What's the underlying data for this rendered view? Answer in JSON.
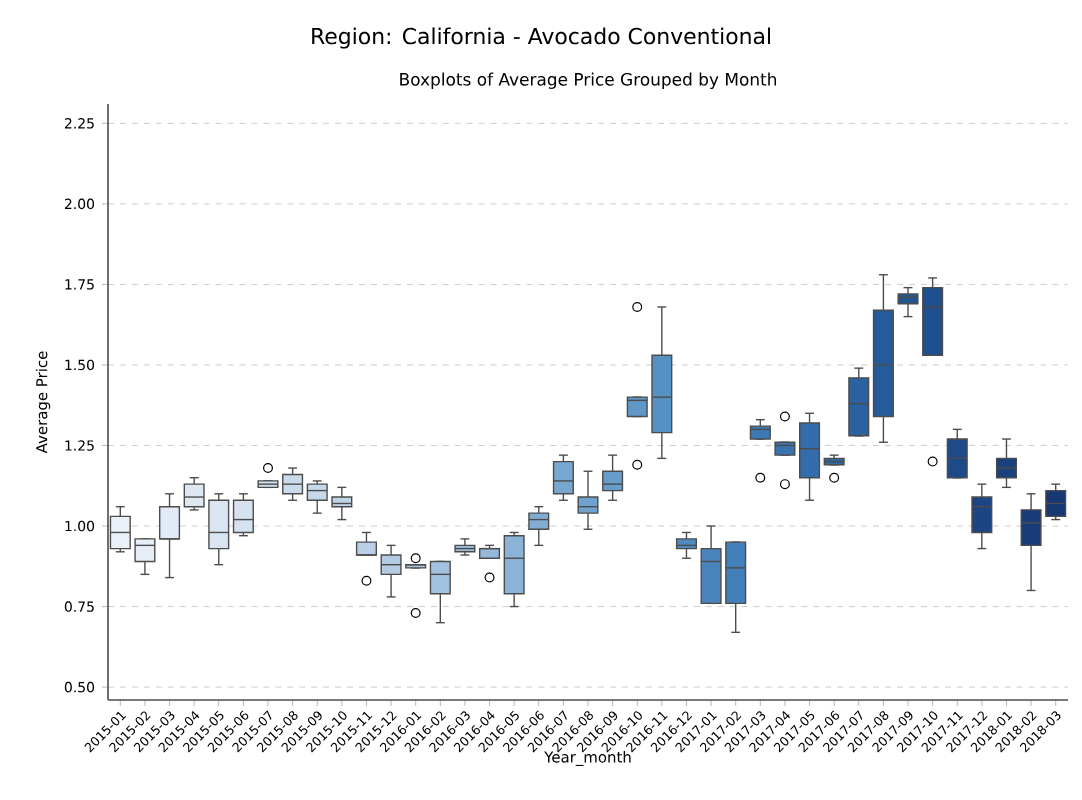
{
  "chart_data": {
    "type": "box",
    "title": "Region: California - Avocado Conventional",
    "subtitle": "Boxplots of Average Price Grouped by Month",
    "xlabel": "Year_month",
    "ylabel": "Average Price",
    "categories": [
      "2015-01",
      "2015-02",
      "2015-03",
      "2015-04",
      "2015-05",
      "2015-06",
      "2015-07",
      "2015-08",
      "2015-09",
      "2015-10",
      "2015-11",
      "2015-12",
      "2016-01",
      "2016-02",
      "2016-03",
      "2016-04",
      "2016-05",
      "2016-06",
      "2016-07",
      "2016-08",
      "2016-09",
      "2016-10",
      "2016-11",
      "2016-12",
      "2017-01",
      "2017-02",
      "2017-03",
      "2017-04",
      "2017-05",
      "2017-06",
      "2017-07",
      "2017-08",
      "2017-09",
      "2017-10",
      "2017-11",
      "2017-12",
      "2018-01",
      "2018-02",
      "2018-03"
    ],
    "boxes": [
      {
        "low": 0.92,
        "q1": 0.93,
        "median": 0.98,
        "q3": 1.03,
        "high": 1.06
      },
      {
        "low": 0.85,
        "q1": 0.89,
        "median": 0.94,
        "q3": 0.96,
        "high": 0.96
      },
      {
        "low": 0.84,
        "q1": 0.96,
        "median": 0.96,
        "q3": 1.06,
        "high": 1.1
      },
      {
        "low": 1.05,
        "q1": 1.06,
        "median": 1.09,
        "q3": 1.13,
        "high": 1.15
      },
      {
        "low": 0.88,
        "q1": 0.93,
        "median": 0.98,
        "q3": 1.08,
        "high": 1.1
      },
      {
        "low": 0.97,
        "q1": 0.98,
        "median": 1.02,
        "q3": 1.08,
        "high": 1.1
      },
      {
        "low": 1.12,
        "q1": 1.12,
        "median": 1.13,
        "q3": 1.14,
        "high": 1.14,
        "outliers": [
          1.18
        ]
      },
      {
        "low": 1.08,
        "q1": 1.1,
        "median": 1.13,
        "q3": 1.16,
        "high": 1.18
      },
      {
        "low": 1.04,
        "q1": 1.08,
        "median": 1.11,
        "q3": 1.13,
        "high": 1.14
      },
      {
        "low": 1.02,
        "q1": 1.06,
        "median": 1.07,
        "q3": 1.09,
        "high": 1.12
      },
      {
        "low": 0.91,
        "q1": 0.91,
        "median": 0.91,
        "q3": 0.95,
        "high": 0.98,
        "outliers": [
          0.83
        ]
      },
      {
        "low": 0.78,
        "q1": 0.85,
        "median": 0.88,
        "q3": 0.91,
        "high": 0.94
      },
      {
        "low": 0.87,
        "q1": 0.87,
        "median": 0.88,
        "q3": 0.88,
        "high": 0.88,
        "outliers": [
          0.9,
          0.73
        ]
      },
      {
        "low": 0.7,
        "q1": 0.79,
        "median": 0.85,
        "q3": 0.89,
        "high": 0.89
      },
      {
        "low": 0.91,
        "q1": 0.92,
        "median": 0.93,
        "q3": 0.94,
        "high": 0.96
      },
      {
        "low": 0.9,
        "q1": 0.9,
        "median": 0.93,
        "q3": 0.93,
        "high": 0.94,
        "outliers": [
          0.84
        ]
      },
      {
        "low": 0.75,
        "q1": 0.79,
        "median": 0.9,
        "q3": 0.97,
        "high": 0.98
      },
      {
        "low": 0.94,
        "q1": 0.99,
        "median": 1.02,
        "q3": 1.04,
        "high": 1.06
      },
      {
        "low": 1.08,
        "q1": 1.1,
        "median": 1.14,
        "q3": 1.2,
        "high": 1.22
      },
      {
        "low": 0.99,
        "q1": 1.04,
        "median": 1.06,
        "q3": 1.09,
        "high": 1.17
      },
      {
        "low": 1.08,
        "q1": 1.11,
        "median": 1.13,
        "q3": 1.17,
        "high": 1.22
      },
      {
        "low": 1.34,
        "q1": 1.34,
        "median": 1.39,
        "q3": 1.4,
        "high": 1.4,
        "outliers": [
          1.68,
          1.19
        ]
      },
      {
        "low": 1.21,
        "q1": 1.29,
        "median": 1.4,
        "q3": 1.53,
        "high": 1.68
      },
      {
        "low": 0.9,
        "q1": 0.93,
        "median": 0.94,
        "q3": 0.96,
        "high": 0.98
      },
      {
        "low": 0.76,
        "q1": 0.76,
        "median": 0.89,
        "q3": 0.93,
        "high": 1.0
      },
      {
        "low": 0.67,
        "q1": 0.76,
        "median": 0.87,
        "q3": 0.95,
        "high": 0.95
      },
      {
        "low": 1.27,
        "q1": 1.27,
        "median": 1.3,
        "q3": 1.31,
        "high": 1.33,
        "outliers": [
          1.15
        ]
      },
      {
        "low": 1.22,
        "q1": 1.22,
        "median": 1.25,
        "q3": 1.26,
        "high": 1.26,
        "outliers": [
          1.34,
          1.13
        ]
      },
      {
        "low": 1.08,
        "q1": 1.15,
        "median": 1.24,
        "q3": 1.32,
        "high": 1.35
      },
      {
        "low": 1.19,
        "q1": 1.19,
        "median": 1.2,
        "q3": 1.21,
        "high": 1.22,
        "outliers": [
          1.15
        ]
      },
      {
        "low": 1.28,
        "q1": 1.28,
        "median": 1.38,
        "q3": 1.46,
        "high": 1.49
      },
      {
        "low": 1.26,
        "q1": 1.34,
        "median": 1.5,
        "q3": 1.67,
        "high": 1.78
      },
      {
        "low": 1.65,
        "q1": 1.69,
        "median": 1.71,
        "q3": 1.72,
        "high": 1.74
      },
      {
        "low": 1.53,
        "q1": 1.53,
        "median": 1.68,
        "q3": 1.74,
        "high": 1.77,
        "outliers": [
          1.2
        ]
      },
      {
        "low": 1.15,
        "q1": 1.15,
        "median": 1.21,
        "q3": 1.27,
        "high": 1.3
      },
      {
        "low": 0.93,
        "q1": 0.98,
        "median": 1.06,
        "q3": 1.09,
        "high": 1.13
      },
      {
        "low": 1.12,
        "q1": 1.15,
        "median": 1.18,
        "q3": 1.21,
        "high": 1.27
      },
      {
        "low": 0.8,
        "q1": 0.94,
        "median": 1.01,
        "q3": 1.05,
        "high": 1.1
      },
      {
        "low": 1.02,
        "q1": 1.03,
        "median": 1.07,
        "q3": 1.11,
        "high": 1.13
      }
    ],
    "colors": [
      "#eaf1f8",
      "#e6eef7",
      "#e2ebf5",
      "#dee8f3",
      "#dae5f2",
      "#d5e2f0",
      "#d0dfee",
      "#cbdbec",
      "#c6d8ea",
      "#c0d4e8",
      "#bad0e6",
      "#b3cce4",
      "#abc7e2",
      "#a3c2df",
      "#9bbddc",
      "#93b8da",
      "#8ab3d7",
      "#81add4",
      "#78a8d1",
      "#6fa2ce",
      "#679dcb",
      "#5f97c7",
      "#5791c4",
      "#508bc0",
      "#4985bc",
      "#437fb8",
      "#3d79b4",
      "#3873af",
      "#336dab",
      "#2e67a6",
      "#2a61a1",
      "#265b9b",
      "#235595",
      "#204f8f",
      "#1e4a89",
      "#1c4583",
      "#1a407d",
      "#183c77",
      "#173872"
    ],
    "ylim": [
      0.46,
      2.31
    ],
    "yticks": [
      {
        "value": 0.5,
        "label": "0.50"
      },
      {
        "value": 0.75,
        "label": "0.75"
      },
      {
        "value": 1.0,
        "label": "1.00"
      },
      {
        "value": 1.25,
        "label": "1.25"
      },
      {
        "value": 1.5,
        "label": "1.50"
      },
      {
        "value": 1.75,
        "label": "1.75"
      },
      {
        "value": 2.0,
        "label": "2.00"
      },
      {
        "value": 2.25,
        "label": "2.25"
      }
    ],
    "grid": "y"
  }
}
